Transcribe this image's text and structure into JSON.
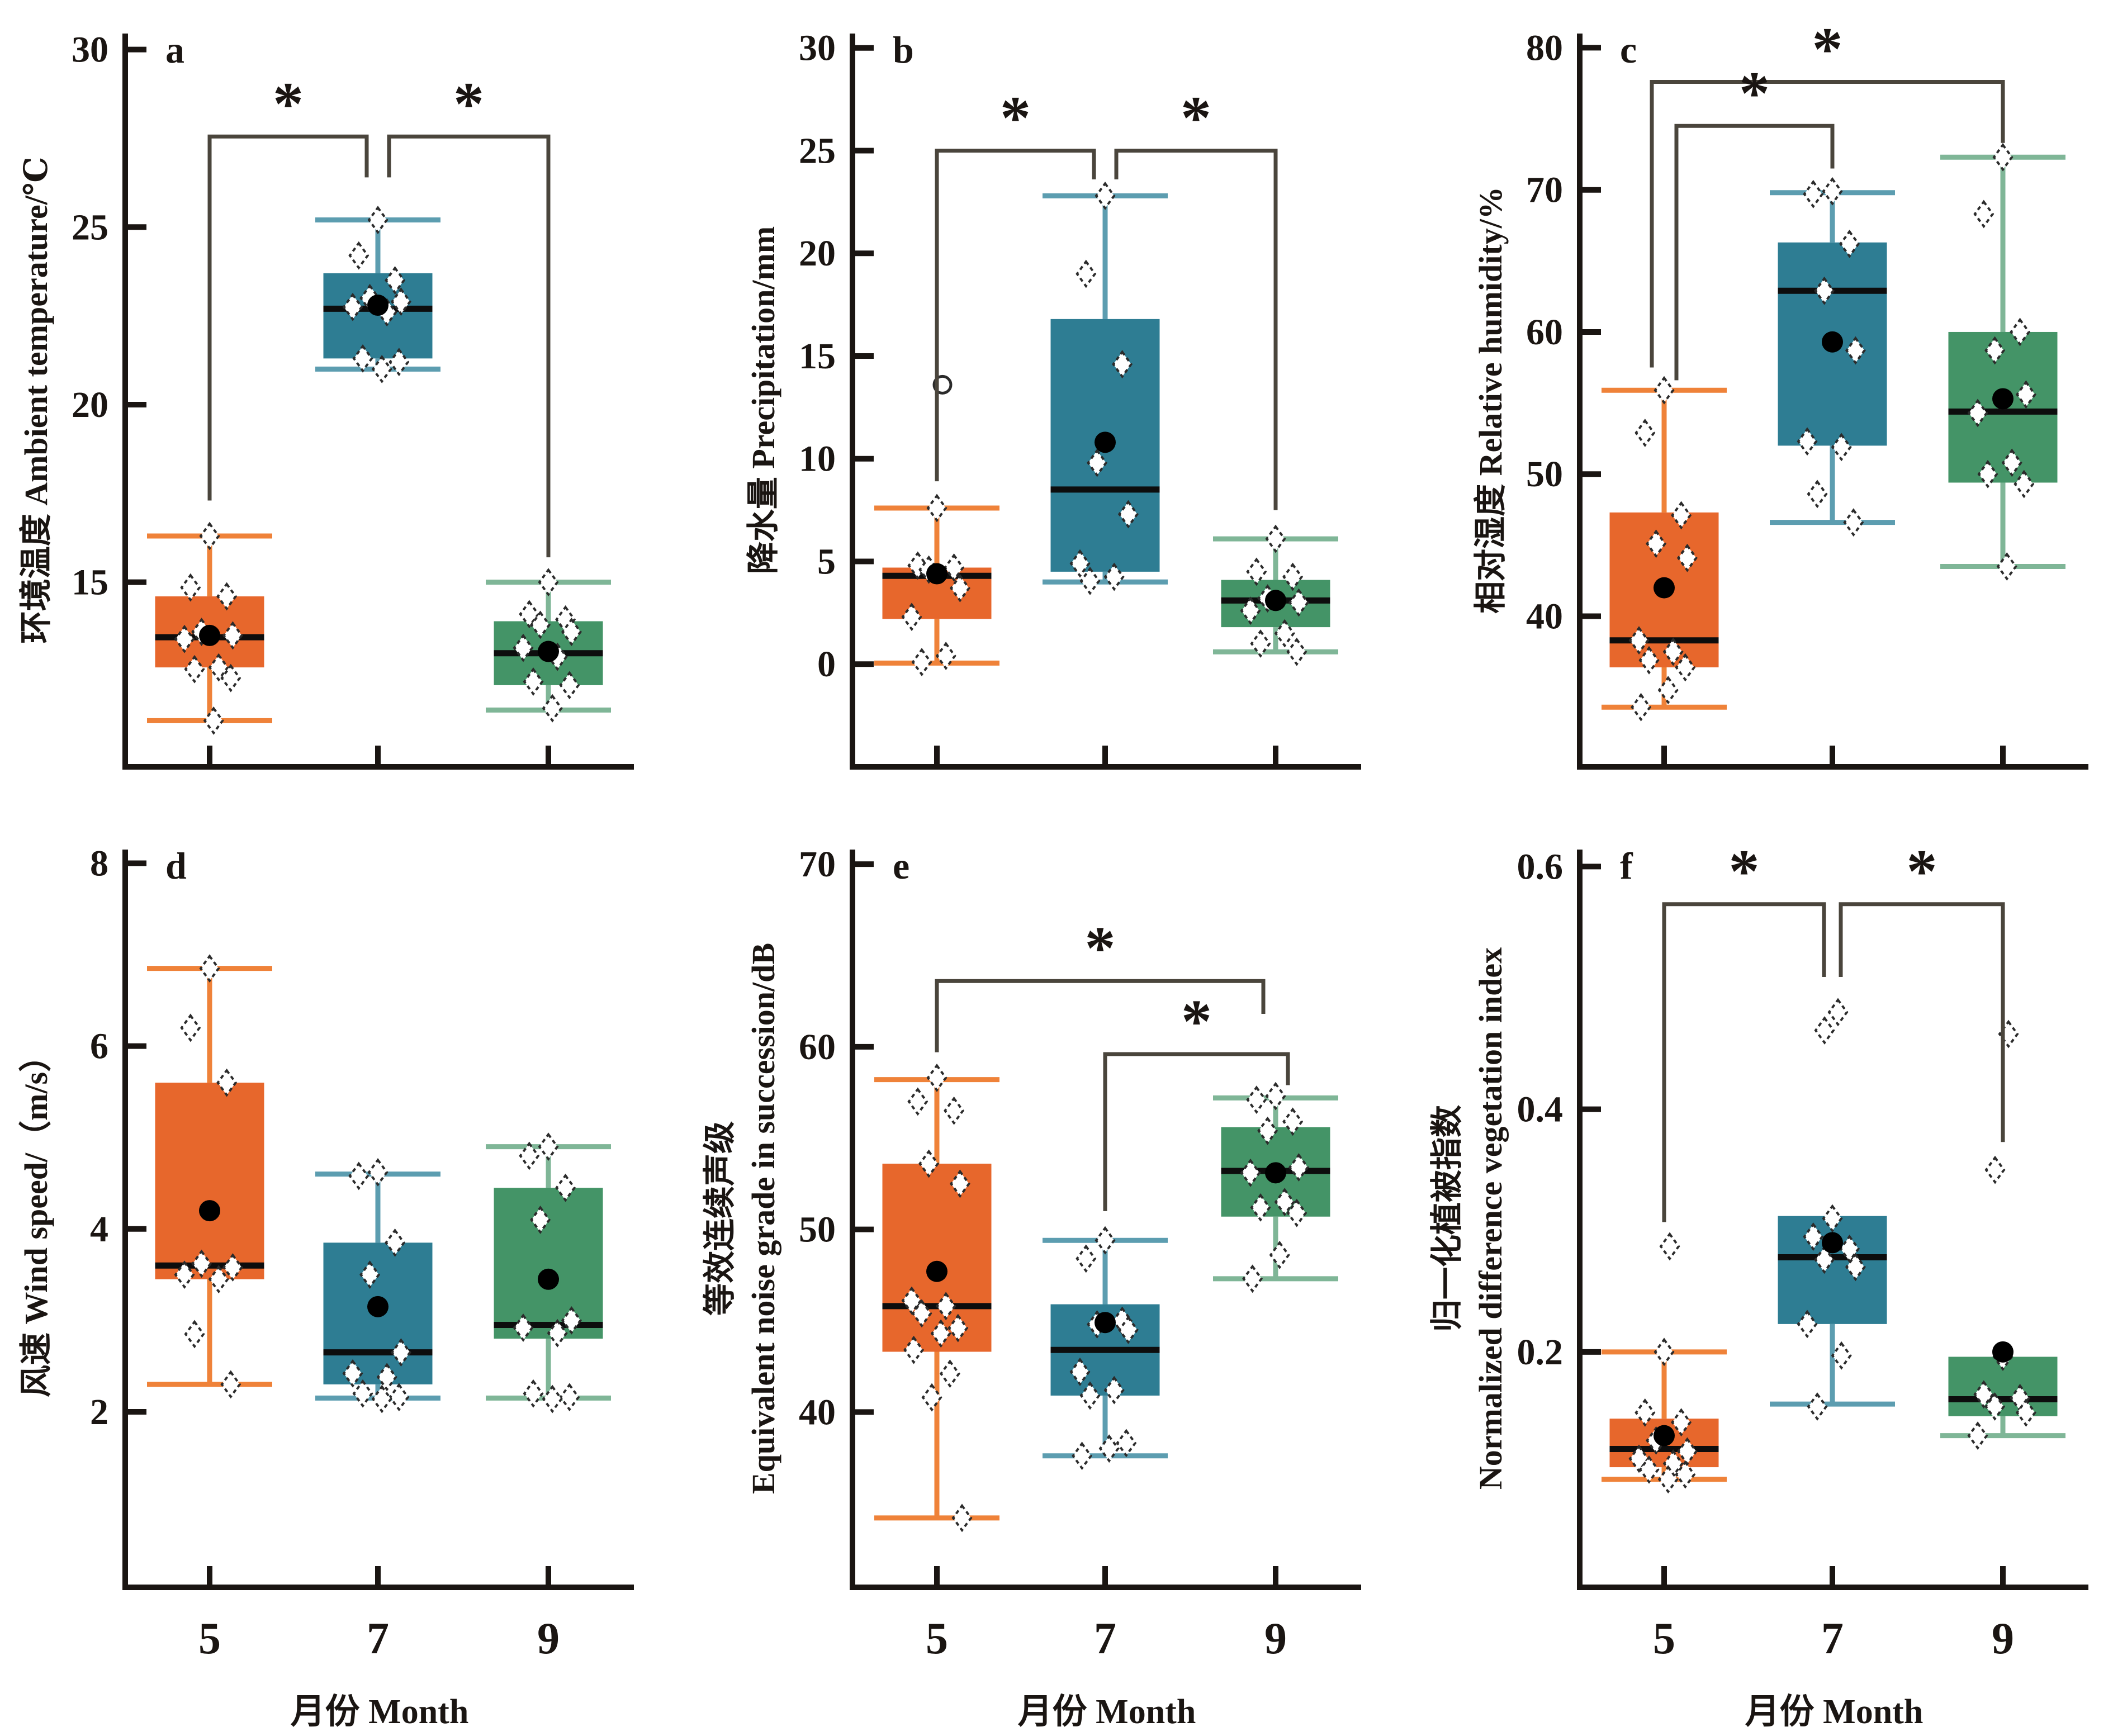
{
  "colors": {
    "orange_fill": "#E7672C",
    "orange_whisker": "#EF8239",
    "teal_fill": "#2E7D93",
    "teal_whisker": "#5C9DB0",
    "green_fill": "#449467",
    "green_whisker": "#7FB697",
    "median": "#0d0d0d",
    "mean": "#000000",
    "point_fill": "#ffffff",
    "point_stroke": "#2b2b2b",
    "axis": "#1a1512",
    "bracket": "#4a453c",
    "background": "#ffffff"
  },
  "chart_data": {
    "type": "box",
    "layout": "2 rows x 3 columns of box plot panels",
    "xlabel": "月份  Month",
    "categories": [
      "5",
      "7",
      "9"
    ],
    "significance_marker": "*",
    "panels": [
      {
        "letter": "a",
        "ylabel_lines": [
          "环境温度 Ambient temperature/℃"
        ],
        "yticks": [
          "30",
          "25",
          "20",
          "15"
        ],
        "ytick_values": [
          30,
          25,
          20,
          15
        ],
        "ylim": [
          9.8,
          30.45
        ],
        "series": [
          {
            "category": "5",
            "color": "orange",
            "whislo": 11.1,
            "q1": 12.6,
            "med": 13.45,
            "q3": 14.6,
            "whishi": 16.3,
            "mean": 13.5,
            "points": [
              16.3,
              14.85,
              14.6,
              13.6,
              13.5,
              13.4,
              12.6,
              12.55,
              12.3,
              11.1
            ],
            "outliers": []
          },
          {
            "category": "7",
            "color": "teal",
            "whislo": 21.0,
            "q1": 21.3,
            "med": 22.7,
            "q3": 23.7,
            "whishi": 25.2,
            "mean": 22.8,
            "points": [
              25.2,
              24.2,
              23.5,
              23.0,
              22.9,
              22.75,
              22.6,
              21.3,
              21.2,
              21.0
            ],
            "outliers": []
          },
          {
            "category": "9",
            "color": "green",
            "whislo": 11.4,
            "q1": 12.1,
            "med": 13.0,
            "q3": 13.9,
            "whishi": 15.0,
            "mean": 13.05,
            "points": [
              15.0,
              14.1,
              13.95,
              13.8,
              13.6,
              13.15,
              12.9,
              12.2,
              12.1,
              11.45
            ],
            "outliers": []
          }
        ],
        "brackets": [
          {
            "left": 0,
            "right": 1,
            "label": "*",
            "y": 27.55,
            "left_end": 17.3,
            "right_end": 26.4,
            "right_dx": -20
          },
          {
            "left": 1,
            "right": 2,
            "label": "*",
            "y": 27.55,
            "left_end": 26.4,
            "right_end": 15.7,
            "left_dx": 20
          }
        ]
      },
      {
        "letter": "b",
        "ylabel_lines": [
          "降水量  Precipitation/mm"
        ],
        "yticks": [
          "30",
          "25",
          "20",
          "15",
          "10",
          "5",
          "0"
        ],
        "ytick_values": [
          30,
          25,
          20,
          15,
          10,
          5,
          0
        ],
        "ylim": [
          -5.0,
          30.7
        ],
        "series": [
          {
            "category": "5",
            "color": "orange",
            "whislo": 0.05,
            "q1": 2.2,
            "med": 4.3,
            "q3": 4.7,
            "whishi": 7.6,
            "mean": 4.4,
            "points": [
              7.6,
              4.8,
              4.7,
              4.6,
              3.7,
              2.3,
              0.4,
              0.1
            ],
            "outliers": [
              13.6
            ],
            "outlier_shape": "circle"
          },
          {
            "category": "7",
            "color": "teal",
            "whislo": 4.0,
            "q1": 4.5,
            "med": 8.5,
            "q3": 16.8,
            "whishi": 22.8,
            "mean": 10.8,
            "points": [
              22.8,
              19.0,
              14.6,
              9.8,
              7.3,
              4.9,
              4.25,
              4.05
            ],
            "outliers": []
          },
          {
            "category": "9",
            "color": "green",
            "whislo": 0.6,
            "q1": 1.8,
            "med": 3.1,
            "q3": 4.1,
            "whishi": 6.1,
            "mean": 3.1,
            "points": [
              6.1,
              4.5,
              4.25,
              3.2,
              3.0,
              2.6,
              1.5,
              1.0,
              0.6
            ],
            "outliers": []
          }
        ],
        "brackets": [
          {
            "left": 0,
            "right": 1,
            "label": "*",
            "y": 25.0,
            "left_end": 8.9,
            "right_end": 23.6,
            "right_dx": -20
          },
          {
            "left": 1,
            "right": 2,
            "label": "*",
            "y": 25.0,
            "left_end": 23.6,
            "right_end": 7.5,
            "left_dx": 20
          }
        ]
      },
      {
        "letter": "c",
        "ylabel_lines": [
          "相对湿度  Relative humidity/%"
        ],
        "yticks": [
          "80",
          "70",
          "60",
          "50",
          "40"
        ],
        "ytick_values": [
          80,
          70,
          60,
          50,
          40
        ],
        "ylim": [
          29.4,
          81.0
        ],
        "series": [
          {
            "category": "5",
            "color": "orange",
            "whislo": 33.6,
            "q1": 36.4,
            "med": 38.3,
            "q3": 47.3,
            "whishi": 55.9,
            "mean": 42.0,
            "points": [
              55.9,
              52.9,
              47.1,
              45.1,
              44.1,
              38.3,
              37.5,
              36.9,
              36.4,
              34.8,
              33.6
            ],
            "outliers": []
          },
          {
            "category": "7",
            "color": "teal",
            "whislo": 46.6,
            "q1": 52.0,
            "med": 62.9,
            "q3": 66.3,
            "whishi": 69.8,
            "mean": 59.3,
            "points": [
              69.9,
              69.7,
              66.2,
              62.9,
              58.7,
              52.3,
              51.9,
              48.6,
              46.6
            ],
            "outliers": []
          },
          {
            "category": "9",
            "color": "green",
            "whislo": 43.5,
            "q1": 49.4,
            "med": 54.4,
            "q3": 60.0,
            "whishi": 72.3,
            "mean": 55.3,
            "points": [
              72.3,
              68.3,
              60.0,
              58.7,
              55.6,
              54.3,
              50.8,
              50.0,
              49.3,
              43.5
            ],
            "outliers": []
          }
        ],
        "brackets": [
          {
            "left": 0,
            "right": 2,
            "label": "*",
            "y": 77.6,
            "left_end": 57.5,
            "right_end": 73.3,
            "left_dx": -22
          },
          {
            "left": 0,
            "right": 1,
            "label": "*",
            "y": 74.5,
            "left_end": 56.6,
            "right_end": 71.5,
            "left_dx": 22
          }
        ]
      },
      {
        "letter": "d",
        "ylabel_lines": [
          "风速  Wind speed/（m/s）"
        ],
        "yticks": [
          "8",
          "6",
          "4",
          "2"
        ],
        "ytick_values": [
          8,
          6,
          4,
          2
        ],
        "ylim": [
          0.08,
          8.15
        ],
        "series": [
          {
            "category": "5",
            "color": "orange",
            "whislo": 2.3,
            "q1": 3.45,
            "med": 3.6,
            "q3": 5.6,
            "whishi": 6.85,
            "mean": 4.2,
            "points": [
              6.85,
              6.2,
              5.6,
              3.62,
              3.58,
              3.5,
              3.45,
              2.85,
              2.3
            ],
            "outliers": []
          },
          {
            "category": "7",
            "color": "teal",
            "whislo": 2.15,
            "q1": 2.3,
            "med": 2.65,
            "q3": 3.85,
            "whishi": 4.6,
            "mean": 3.15,
            "points": [
              4.62,
              4.58,
              3.85,
              3.5,
              2.65,
              2.42,
              2.38,
              2.2,
              2.16,
              2.14
            ],
            "outliers": []
          },
          {
            "category": "9",
            "color": "green",
            "whislo": 2.15,
            "q1": 2.8,
            "med": 2.95,
            "q3": 4.45,
            "whishi": 4.9,
            "mean": 3.45,
            "points": [
              4.9,
              4.8,
              4.45,
              4.1,
              3.0,
              2.92,
              2.86,
              2.2,
              2.16,
              2.14
            ],
            "outliers": []
          }
        ],
        "brackets": []
      },
      {
        "letter": "e",
        "ylabel_lines": [
          "等效连续声级",
          "Equivalent noise grade in succession/dB"
        ],
        "yticks": [
          "70",
          "60",
          "50",
          "40"
        ],
        "ytick_values": [
          70,
          60,
          50,
          40
        ],
        "ylim": [
          30.4,
          70.8
        ],
        "series": [
          {
            "category": "5",
            "color": "orange",
            "whislo": 34.2,
            "q1": 43.3,
            "med": 45.8,
            "q3": 53.6,
            "whishi": 58.2,
            "mean": 47.7,
            "points": [
              58.3,
              57.0,
              56.5,
              53.6,
              52.5,
              46.1,
              45.8,
              45.4,
              44.6,
              44.3,
              43.4,
              42.1,
              40.8,
              34.2
            ],
            "outliers": []
          },
          {
            "category": "7",
            "color": "teal",
            "whislo": 37.6,
            "q1": 40.9,
            "med": 43.4,
            "q3": 45.9,
            "whishi": 49.4,
            "mean": 44.9,
            "points": [
              49.4,
              48.4,
              45.0,
              44.8,
              44.5,
              42.2,
              41.2,
              40.9,
              38.3,
              38.0,
              37.6
            ],
            "outliers": []
          },
          {
            "category": "9",
            "color": "green",
            "whislo": 47.3,
            "q1": 50.7,
            "med": 53.2,
            "q3": 55.6,
            "whishi": 57.2,
            "mean": 53.1,
            "points": [
              57.3,
              57.1,
              55.9,
              55.4,
              53.4,
              53.1,
              51.5,
              51.2,
              50.9,
              48.6,
              47.3
            ],
            "outliers": []
          }
        ],
        "brackets": [
          {
            "left": 0,
            "right": 2,
            "label": "*",
            "y": 63.6,
            "left_end": 59.7,
            "right_end": 61.8,
            "right_dx": -22
          },
          {
            "left": 1,
            "right": 2,
            "label": "*",
            "y": 59.6,
            "left_end": 51.0,
            "right_end": 57.9,
            "right_dx": 22
          }
        ]
      },
      {
        "letter": "f",
        "ylabel_lines": [
          "归一化植被指数",
          "Normalized difference vegetation index"
        ],
        "yticks": [
          "0.6",
          "0.4",
          "0.2"
        ],
        "ytick_values": [
          0.6,
          0.4,
          0.2
        ],
        "ylim": [
          0.006,
          0.614
        ],
        "series": [
          {
            "category": "5",
            "color": "orange",
            "whislo": 0.095,
            "q1": 0.105,
            "med": 0.12,
            "q3": 0.145,
            "whishi": 0.2,
            "mean": 0.131,
            "points": [
              0.2,
              0.15,
              0.142,
              0.127,
              0.118,
              0.112,
              0.108,
              0.103,
              0.099,
              0.095
            ],
            "outliers": [
              0.287
            ]
          },
          {
            "category": "7",
            "color": "teal",
            "whislo": 0.157,
            "q1": 0.223,
            "med": 0.278,
            "q3": 0.312,
            "whishi": 0.312,
            "mean": 0.29,
            "points": [
              0.31,
              0.295,
              0.285,
              0.276,
              0.27,
              0.223,
              0.197,
              0.155
            ],
            "outliers": [
              0.48,
              0.465
            ]
          },
          {
            "category": "9",
            "color": "green",
            "whislo": 0.131,
            "q1": 0.147,
            "med": 0.161,
            "q3": 0.196,
            "whishi": 0.196,
            "mean": 0.2,
            "points": [
              0.196,
              0.165,
              0.162,
              0.155,
              0.15,
              0.131
            ],
            "outliers": [
              0.462,
              0.35
            ]
          }
        ],
        "brackets": [
          {
            "left": 0,
            "right": 1,
            "label": "*",
            "y": 0.569,
            "left_end": 0.307,
            "right_end": 0.509,
            "right_dx": -15
          },
          {
            "left": 1,
            "right": 2,
            "label": "*",
            "y": 0.569,
            "left_end": 0.509,
            "right_end": 0.373,
            "left_dx": 15
          }
        ]
      }
    ]
  }
}
